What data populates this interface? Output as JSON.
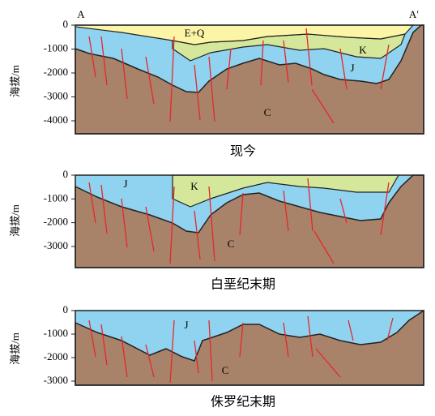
{
  "panels": [
    {
      "caption": "现今",
      "y_label": "海拔/m",
      "y_ticks": [
        "0",
        "-1000",
        "-2000",
        "-3000",
        "-4000"
      ],
      "labels": [
        "A",
        "A′",
        "E+Q",
        "K",
        "J",
        "C"
      ]
    },
    {
      "caption": "白垩纪末期",
      "y_label": "海拔/m",
      "y_ticks": [
        "0",
        "-1000",
        "-2000",
        "-3000"
      ],
      "labels": [
        "J",
        "K",
        "C"
      ]
    },
    {
      "caption": "侏罗纪末期",
      "y_label": "海拔/m",
      "y_ticks": [
        "0",
        "-1000",
        "-2000",
        "-3000"
      ],
      "labels": [
        "J",
        "C"
      ]
    }
  ]
}
